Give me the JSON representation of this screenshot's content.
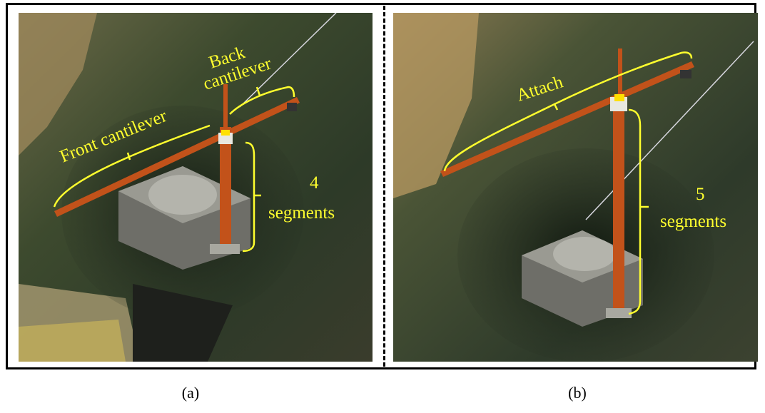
{
  "panels": [
    {
      "caption": "(a)",
      "labels": {
        "front_cantilever": "Front cantilever",
        "back_cantilever_1": "Back",
        "back_cantilever_2": "cantilever",
        "segments_count": "4",
        "segments_word": "segments"
      }
    },
    {
      "caption": "(b)",
      "labels": {
        "attach": "Attach",
        "segments_count": "5",
        "segments_word": "segments"
      }
    }
  ],
  "colors": {
    "annotation": "#ffff2e",
    "crane": "#c2521a",
    "frame": "#000000"
  }
}
